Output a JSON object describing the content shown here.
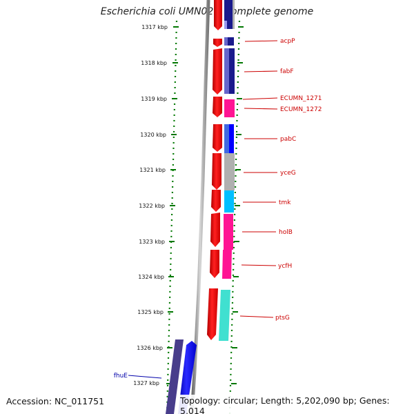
{
  "title": "Escherichia coli UMN026, complete genome",
  "footer": {
    "accession": "Accession: NC_011751",
    "summary": "Topology: circular; Length: 5,202,090 bp; Genes: 5,014"
  },
  "scale": {
    "tick_labels": [
      "1317 kbp",
      "1318 kbp",
      "1319 kbp",
      "1320 kbp",
      "1321 kbp",
      "1322 kbp",
      "1323 kbp",
      "1324 kbp",
      "1325 kbp",
      "1326 kbp",
      "1327 kbp"
    ]
  },
  "gene_labels": [
    {
      "name": "acpP",
      "color": "#cc0000"
    },
    {
      "name": "fabF",
      "color": "#cc0000"
    },
    {
      "name": "ECUMN_1271",
      "color": "#cc0000"
    },
    {
      "name": "ECUMN_1272",
      "color": "#cc0000"
    },
    {
      "name": "pabC",
      "color": "#cc0000"
    },
    {
      "name": "yceG",
      "color": "#cc0000"
    },
    {
      "name": "tmk",
      "color": "#cc0000"
    },
    {
      "name": "holB",
      "color": "#cc0000"
    },
    {
      "name": "ycfH",
      "color": "#cc0000"
    },
    {
      "name": "ptsG",
      "color": "#cc0000"
    },
    {
      "name": "fhuE",
      "color": "#0000aa"
    }
  ],
  "colors": {
    "forward_strand": "#ff0000",
    "reverse_strand": "#0000ff",
    "backbone": "#888888",
    "tick_marks": "#007700",
    "cog_colors": [
      "#1a1a8c",
      "#6666cc",
      "#ff1493",
      "#4169e1",
      "#b0b0b0",
      "#00bfff",
      "#40e0d0",
      "#483d8b"
    ]
  }
}
